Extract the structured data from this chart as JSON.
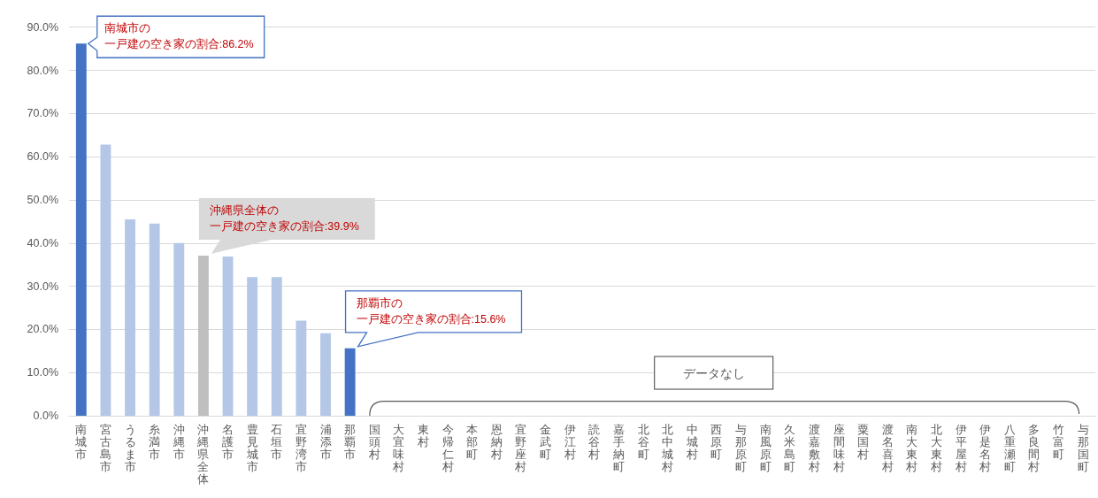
{
  "chart_data": {
    "type": "bar",
    "categories": [
      "南城市",
      "宮古島市",
      "うるま市",
      "糸満市",
      "沖縄市",
      "沖縄県全体",
      "名護市",
      "豊見城市",
      "石垣市",
      "宜野湾市",
      "浦添市",
      "那覇市",
      "国頭村",
      "大宜味村",
      "東村",
      "今帰仁村",
      "本部町",
      "恩納村",
      "宜野座村",
      "金武町",
      "伊江村",
      "読谷村",
      "嘉手納町",
      "北谷町",
      "北中城村",
      "中城村",
      "西原町",
      "与那原町",
      "南風原町",
      "久米島町",
      "渡嘉敷村",
      "座間味村",
      "粟国村",
      "渡名喜村",
      "南大東村",
      "北大東村",
      "伊平屋村",
      "伊是名村",
      "八重瀬町",
      "多良間村",
      "竹富町",
      "与那国町"
    ],
    "values": [
      86.2,
      62.8,
      45.5,
      44.5,
      40.0,
      37.1,
      36.9,
      32.1,
      32.1,
      22.0,
      19.1,
      15.6,
      null,
      null,
      null,
      null,
      null,
      null,
      null,
      null,
      null,
      null,
      null,
      null,
      null,
      null,
      null,
      null,
      null,
      null,
      null,
      null,
      null,
      null,
      null,
      null,
      null,
      null,
      null,
      null,
      null,
      null
    ],
    "colors": [
      "#4472c4",
      "#b4c7e7",
      "#b4c7e7",
      "#b4c7e7",
      "#b4c7e7",
      "#bfbfbf",
      "#b4c7e7",
      "#b4c7e7",
      "#b4c7e7",
      "#b4c7e7",
      "#b4c7e7",
      "#4472c4",
      null,
      null,
      null,
      null,
      null,
      null,
      null,
      null,
      null,
      null,
      null,
      null,
      null,
      null,
      null,
      null,
      null,
      null,
      null,
      null,
      null,
      null,
      null,
      null,
      null,
      null,
      null,
      null,
      null,
      null
    ],
    "ylim": [
      0,
      90
    ],
    "yticks": [
      {
        "value": 0,
        "label": "0.0%"
      },
      {
        "value": 10,
        "label": "10.0%"
      },
      {
        "value": 20,
        "label": "20.0%"
      },
      {
        "value": 30,
        "label": "30.0%"
      },
      {
        "value": 40,
        "label": "40.0%"
      },
      {
        "value": 50,
        "label": "50.0%"
      },
      {
        "value": 60,
        "label": "60.0%"
      },
      {
        "value": 70,
        "label": "70.0%"
      },
      {
        "value": 80,
        "label": "80.0%"
      },
      {
        "value": 90,
        "label": "90.0%"
      }
    ],
    "grid": "y",
    "annotations": [
      {
        "text": "南城市の一戸建の空き家の割合:86.2%",
        "x": "南城市",
        "y": 86.2
      },
      {
        "text": "沖縄県全体の一戸建の空き家の割合:39.9%",
        "x": "沖縄県全体",
        "y": 37.1
      },
      {
        "text": "那覇市の一戸建の空き家の割合:15.6%",
        "x": "那覇市",
        "y": 15.6
      },
      "データなし"
    ]
  }
}
